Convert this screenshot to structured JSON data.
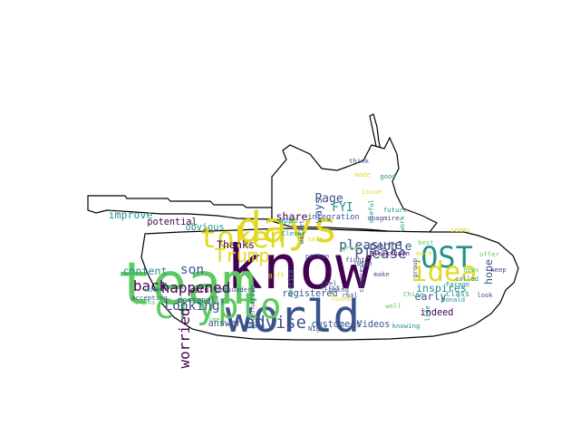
{
  "palette": {
    "purple": "#440154",
    "indigo": "#3b528b",
    "teal": "#21918c",
    "green": "#5ec962",
    "yellow": "#e1d924"
  },
  "words": [
    {
      "text": "know",
      "color": "#440154",
      "size": 46,
      "rotate": false
    },
    {
      "text": "team",
      "color": "#5ec962",
      "size": 44,
      "rotate": false
    },
    {
      "text": "world",
      "color": "#3b528b",
      "size": 34,
      "rotate": false
    },
    {
      "text": "days",
      "color": "#e1d924",
      "size": 32,
      "rotate": false
    },
    {
      "text": "crypto",
      "color": "#5ec962",
      "size": 27,
      "rotate": false
    },
    {
      "text": "token",
      "color": "#e1d924",
      "size": 22,
      "rotate": false
    },
    {
      "text": "OST",
      "color": "#21918c",
      "size": 22,
      "rotate": false
    },
    {
      "text": "idea",
      "color": "#e1d924",
      "size": 21,
      "rotate": false
    },
    {
      "text": "Trump",
      "color": "#e1d924",
      "size": 14,
      "rotate": false
    },
    {
      "text": "advise",
      "color": "#3b528b",
      "size": 13,
      "rotate": false
    },
    {
      "text": "Please",
      "color": "#3b528b",
      "size": 11,
      "rotate": false
    },
    {
      "text": "happened",
      "color": "#440154",
      "size": 11,
      "rotate": false
    },
    {
      "text": "worried",
      "color": "#440154",
      "size": 11,
      "rotate": true
    },
    {
      "text": "back",
      "color": "#440154",
      "size": 11,
      "rotate": false
    },
    {
      "text": "son",
      "color": "#3b528b",
      "size": 10,
      "rotate": false
    },
    {
      "text": "Looking",
      "color": "#3b528b",
      "size": 10,
      "rotate": false
    },
    {
      "text": "pleasure",
      "color": "#3b528b",
      "size": 10,
      "rotate": false
    },
    {
      "text": "people",
      "color": "#3b528b",
      "size": 9,
      "rotate": false
    },
    {
      "text": "Page",
      "color": "#3b528b",
      "size": 9,
      "rotate": false
    },
    {
      "text": "FYI",
      "color": "#21918c",
      "size": 9,
      "rotate": false
    },
    {
      "text": "share",
      "color": "#440154",
      "size": 8,
      "rotate": false
    },
    {
      "text": "Thanks",
      "color": "#440154",
      "size": 8,
      "rotate": false
    },
    {
      "text": "content",
      "color": "#21918c",
      "size": 8,
      "rotate": false
    },
    {
      "text": "improve",
      "color": "#21918c",
      "size": 8,
      "rotate": false
    },
    {
      "text": "ways",
      "color": "#3b528b",
      "size": 8,
      "rotate": true
    },
    {
      "text": "early",
      "color": "#3b528b",
      "size": 8,
      "rotate": false
    },
    {
      "text": "hope",
      "color": "#3b528b",
      "size": 8,
      "rotate": true
    },
    {
      "text": "inspires",
      "color": "#21918c",
      "size": 8,
      "rotate": false
    },
    {
      "text": "potential",
      "color": "#440154",
      "size": 7,
      "rotate": false
    },
    {
      "text": "obvious",
      "color": "#21918c",
      "size": 7,
      "rotate": false
    },
    {
      "text": "registered",
      "color": "#3b528b",
      "size": 7,
      "rotate": false
    },
    {
      "text": "customers",
      "color": "#3b528b",
      "size": 7,
      "rotate": false
    },
    {
      "text": "Videos",
      "color": "#3b528b",
      "size": 7,
      "rotate": false
    },
    {
      "text": "answer",
      "color": "#3b528b",
      "size": 7,
      "rotate": false
    },
    {
      "text": "indeed",
      "color": "#440154",
      "size": 7,
      "rotate": false
    },
    {
      "text": "integration",
      "color": "#3b528b",
      "size": 6,
      "rotate": false
    },
    {
      "text": "apps",
      "color": "#21918c",
      "size": 6,
      "rotate": false
    },
    {
      "text": "earn",
      "color": "#440154",
      "size": 6,
      "rotate": false
    },
    {
      "text": "personally",
      "color": "#3b528b",
      "size": 6,
      "rotate": false
    },
    {
      "text": "class",
      "color": "#21918c",
      "size": 6,
      "rotate": false
    },
    {
      "text": "Blockchain",
      "color": "#440154",
      "size": 5,
      "rotate": false
    },
    {
      "text": "sign",
      "color": "#3b528b",
      "size": 5,
      "rotate": false
    },
    {
      "text": "real",
      "color": "#3b528b",
      "size": 5,
      "rotate": false
    },
    {
      "text": "first",
      "color": "#3b528b",
      "size": 5,
      "rotate": false
    },
    {
      "text": "going",
      "color": "#3b528b",
      "size": 5,
      "rotate": false
    },
    {
      "text": "feel",
      "color": "#3b528b",
      "size": 5,
      "rotate": false
    },
    {
      "text": "called",
      "color": "#21918c",
      "size": 5,
      "rotate": false
    },
    {
      "text": "Nigel",
      "color": "#3b528b",
      "size": 5,
      "rotate": false
    },
    {
      "text": "knowing",
      "color": "#21918c",
      "size": 5,
      "rotate": false
    },
    {
      "text": "Farage",
      "color": "#21918c",
      "size": 5,
      "rotate": false
    },
    {
      "text": "Donald",
      "color": "#21918c",
      "size": 5,
      "rotate": false
    },
    {
      "text": "Clever",
      "color": "#21918c",
      "size": 5,
      "rotate": false
    },
    {
      "text": "America",
      "color": "#21918c",
      "size": 5,
      "rotate": true
    },
    {
      "text": "become",
      "color": "#3b528b",
      "size": 5,
      "rotate": false
    },
    {
      "text": "life",
      "color": "#21918c",
      "size": 5,
      "rotate": true
    },
    {
      "text": "China",
      "color": "#5ec962",
      "size": 5,
      "rotate": false
    },
    {
      "text": "alternative",
      "color": "#3b528b",
      "size": 5,
      "rotate": true
    },
    {
      "text": "person",
      "color": "#3b528b",
      "size": 5,
      "rotate": false
    },
    {
      "text": "quagmire",
      "color": "#3b528b",
      "size": 5,
      "rotate": false
    },
    {
      "text": "keep",
      "color": "#3b528b",
      "size": 5,
      "rotate": false
    },
    {
      "text": "make",
      "color": "#3b528b",
      "size": 5,
      "rotate": false
    },
    {
      "text": "fight",
      "color": "#3b528b",
      "size": 5,
      "rotate": false
    },
    {
      "text": "congress",
      "color": "#3b528b",
      "size": 5,
      "rotate": true
    },
    {
      "text": "time",
      "color": "#5ec962",
      "size": 5,
      "rotate": false
    },
    {
      "text": "wish",
      "color": "#21918c",
      "size": 5,
      "rotate": false
    },
    {
      "text": "alpha",
      "color": "#5ec962",
      "size": 5,
      "rotate": false
    },
    {
      "text": "accepting",
      "color": "#3b528b",
      "size": 5,
      "rotate": false
    },
    {
      "text": "persuaders",
      "color": "#3b528b",
      "size": 5,
      "rotate": false
    },
    {
      "text": "found",
      "color": "#e1d924",
      "size": 5,
      "rotate": false
    },
    {
      "text": "issue",
      "color": "#e1d924",
      "size": 5,
      "rotate": false
    },
    {
      "text": "sale",
      "color": "#e1d924",
      "size": 5,
      "rotate": false
    },
    {
      "text": "gift",
      "color": "#e1d924",
      "size": 5,
      "rotate": false
    },
    {
      "text": "seems",
      "color": "#e1d924",
      "size": 5,
      "rotate": false
    },
    {
      "text": "best",
      "color": "#5ec962",
      "size": 5,
      "rotate": false
    },
    {
      "text": "offer",
      "color": "#5ec962",
      "size": 5,
      "rotate": false
    },
    {
      "text": "made",
      "color": "#e1d924",
      "size": 5,
      "rotate": false
    },
    {
      "text": "good",
      "color": "#21918c",
      "size": 5,
      "rotate": false
    },
    {
      "text": "wallet",
      "color": "#3b528b",
      "size": 5,
      "rotate": true
    },
    {
      "text": "great",
      "color": "#5ec962",
      "size": 5,
      "rotate": false
    },
    {
      "text": "future",
      "color": "#21918c",
      "size": 5,
      "rotate": false
    },
    {
      "text": "news",
      "color": "#5ec962",
      "size": 5,
      "rotate": false
    },
    {
      "text": "useful",
      "color": "#21918c",
      "size": 5,
      "rotate": true
    },
    {
      "text": "group",
      "color": "#3b528b",
      "size": 5,
      "rotate": true
    },
    {
      "text": "much",
      "color": "#e1d924",
      "size": 5,
      "rotate": false
    },
    {
      "text": "look",
      "color": "#3b528b",
      "size": 5,
      "rotate": false
    },
    {
      "text": "think",
      "color": "#3b528b",
      "size": 5,
      "rotate": false
    },
    {
      "text": "work",
      "color": "#21918c",
      "size": 5,
      "rotate": true
    },
    {
      "text": "well",
      "color": "#5ec962",
      "size": 5,
      "rotate": false
    }
  ]
}
